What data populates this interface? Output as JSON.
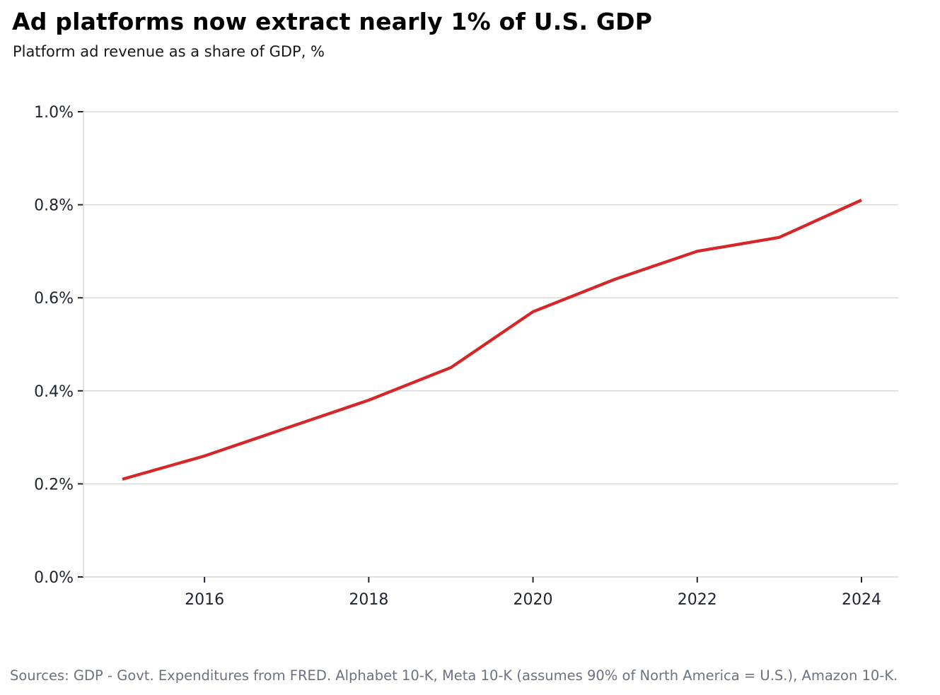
{
  "header": {
    "title": "Ad platforms now extract nearly 1% of U.S. GDP",
    "subtitle": "Platform ad revenue as a share of GDP, %"
  },
  "footer": {
    "sources": "Sources: GDP - Govt. Expenditures from FRED. Alphabet 10-K, Meta 10-K (assumes 90% of North America = U.S.), Amazon 10-K."
  },
  "colors": {
    "line": "#d62728",
    "grid": "#d9d9d9",
    "spine": "#d9d9d9",
    "tick_mark": "#1f2433",
    "axis_text": "#1f2433",
    "title_text": "#000000",
    "source_text": "#6b7280",
    "background": "#ffffff"
  },
  "chart_data": {
    "type": "line",
    "title": "Ad platforms now extract nearly 1% of U.S. GDP",
    "subtitle": "Platform ad revenue as a share of GDP, %",
    "series": [
      {
        "name": "Platform ad revenue as a share of GDP (%)",
        "x": [
          2015,
          2016,
          2017,
          2018,
          2019,
          2020,
          2021,
          2022,
          2023,
          2024
        ],
        "values": [
          0.21,
          0.26,
          0.32,
          0.38,
          0.45,
          0.57,
          0.64,
          0.7,
          0.73,
          0.81
        ]
      }
    ],
    "xlabel": "",
    "ylabel": "",
    "ylim": [
      0.0,
      1.0
    ],
    "yticks": [
      0.0,
      0.2,
      0.4,
      0.6,
      0.8,
      1.0
    ],
    "ytick_labels": [
      "0.0%",
      "0.2%",
      "0.4%",
      "0.6%",
      "0.8%",
      "1.0%"
    ],
    "xticks": [
      2016,
      2018,
      2020,
      2022,
      2024
    ],
    "xtick_labels": [
      "2016",
      "2018",
      "2020",
      "2022",
      "2024"
    ],
    "grid": "horizontal",
    "legend": "none",
    "line_width": 4.3
  }
}
